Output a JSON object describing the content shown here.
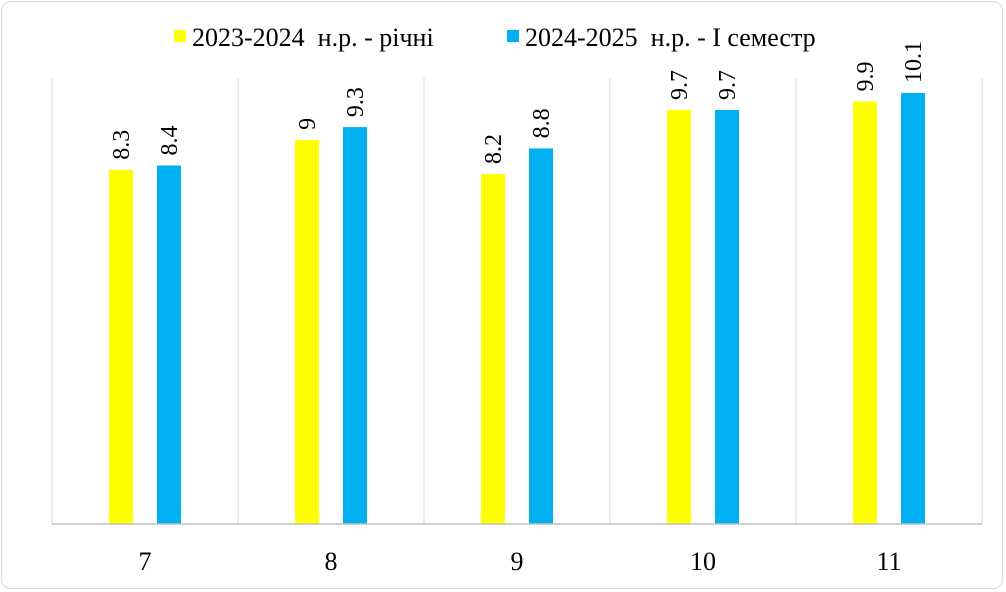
{
  "chart_data": {
    "type": "bar",
    "categories": [
      "7",
      "8",
      "9",
      "10",
      "11"
    ],
    "series": [
      {
        "name": "2023-2024  н.р. - річні",
        "color": "#ffff00",
        "values": [
          8.3,
          9,
          8.2,
          9.7,
          9.9
        ]
      },
      {
        "name": "2024-2025  н.р. - І семестр",
        "color": "#00b0f0",
        "values": [
          8.4,
          9.3,
          8.8,
          9.7,
          10.1
        ]
      }
    ],
    "ylim": [
      0,
      10.45
    ],
    "grid": "vertical category separators",
    "legend_position": "top",
    "value_labels": "rotated above bars"
  }
}
